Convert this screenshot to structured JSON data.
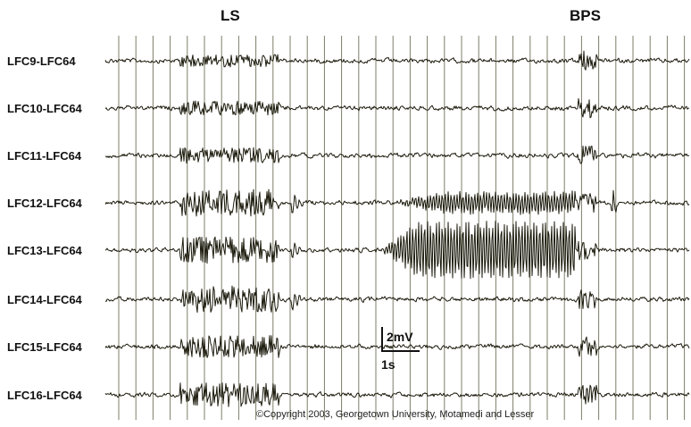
{
  "markers": {
    "left": "LS",
    "right": "BPS"
  },
  "channels": [
    "LFC9-LFC64",
    "LFC10-LFC64",
    "LFC11-LFC64",
    "LFC12-LFC64",
    "LFC13-LFC64",
    "LFC14-LFC64",
    "LFC15-LFC64",
    "LFC16-LFC64"
  ],
  "scale_bar": {
    "amplitude": "2mV",
    "time": "1s"
  },
  "copyright": "©Copyright 2003, Georgetown University, Motamedi and Lesser",
  "colors": {
    "trace": "#1c1a0c",
    "grid": "#7d7d6a",
    "background": "#ffffff"
  }
}
